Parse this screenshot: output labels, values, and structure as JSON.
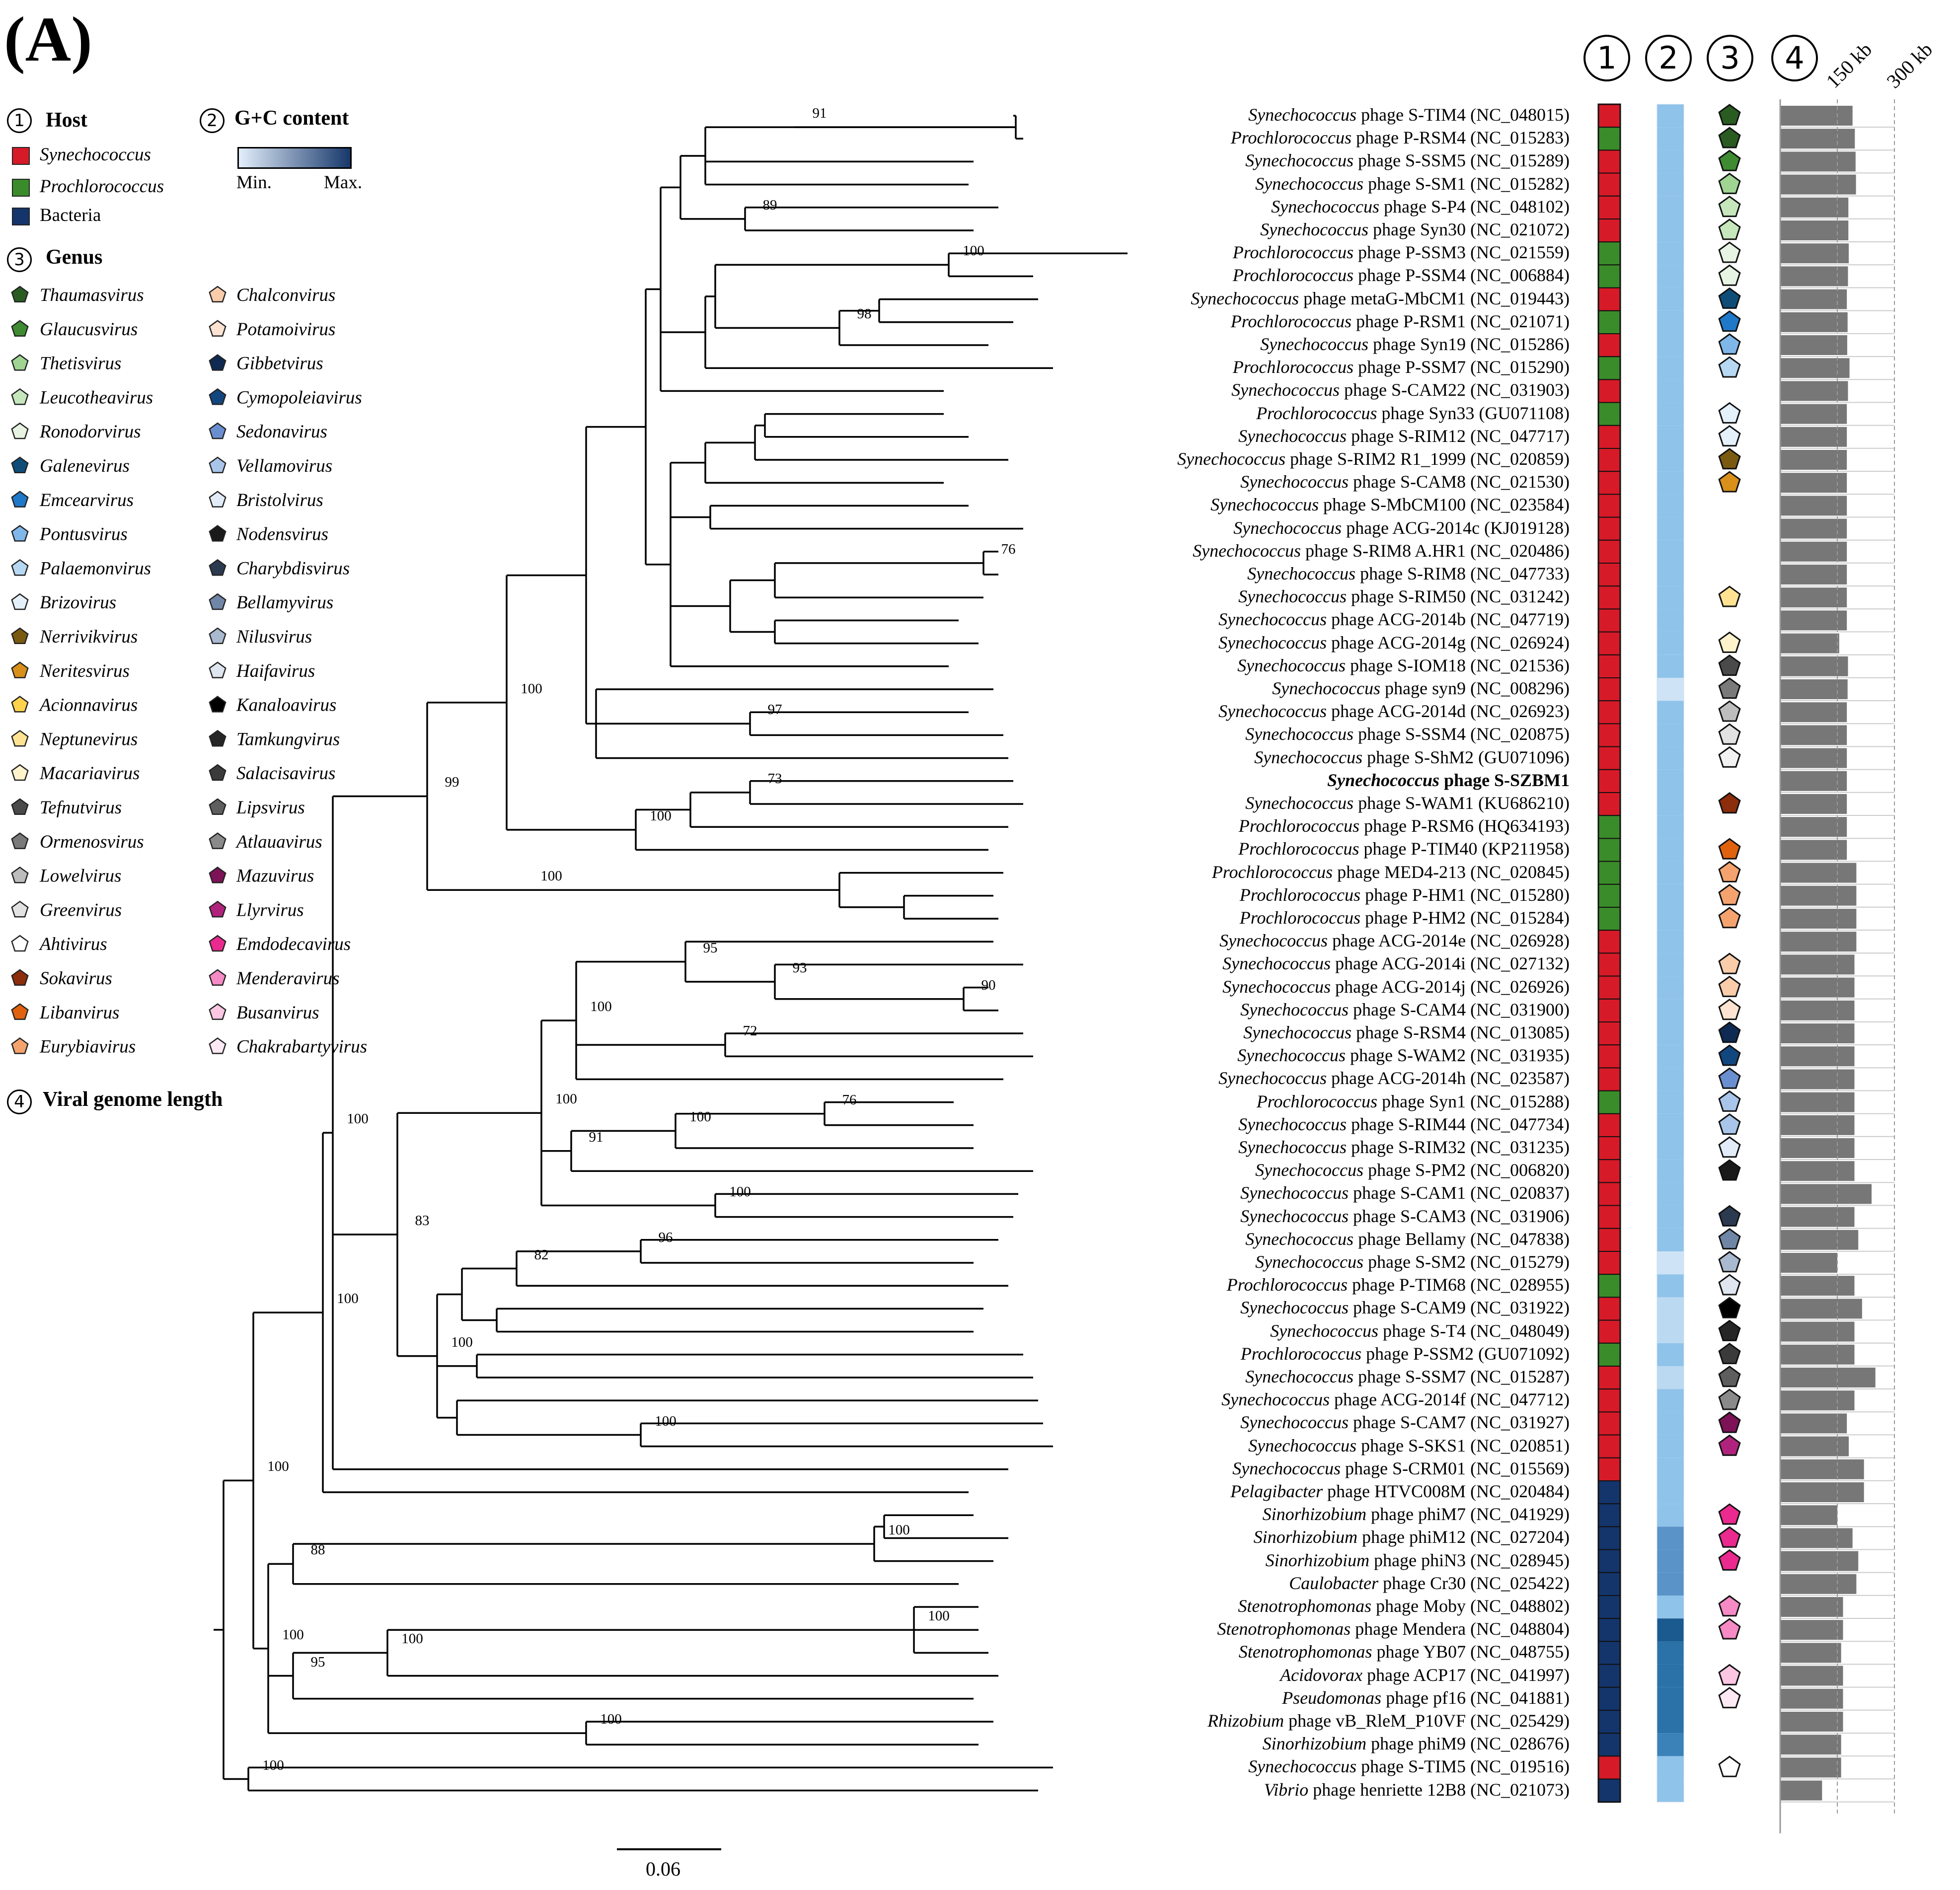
{
  "panel_label": "(A)",
  "legend": {
    "host": {
      "title": "Host",
      "items": [
        {
          "label": "Synechococcus",
          "italic": true,
          "color": "#d71a28"
        },
        {
          "label": "Prochlorococcus",
          "italic": true,
          "color": "#3a8c2a"
        },
        {
          "label": "Bacteria",
          "italic": false,
          "color": "#14356b"
        }
      ]
    },
    "gc": {
      "title": "G+C content",
      "min": "Min.",
      "max": "Max.",
      "color_min": "#e3eefb",
      "color_max": "#17386b"
    },
    "genus": {
      "title": "Genus",
      "col1": [
        {
          "label": "Thaumasvirus",
          "color": "#2a5c22"
        },
        {
          "label": "Glaucusvirus",
          "color": "#3f8b32"
        },
        {
          "label": "Thetisvirus",
          "color": "#9fd493"
        },
        {
          "label": "Leucotheavirus",
          "color": "#c6e6bc"
        },
        {
          "label": "Ronodorvirus",
          "color": "#e8f4e3"
        },
        {
          "label": "Galenevirus",
          "color": "#0f4d78"
        },
        {
          "label": "Emcearvirus",
          "color": "#1f78c8"
        },
        {
          "label": "Pontusvirus",
          "color": "#7fb7e8"
        },
        {
          "label": "Palaemonvirus",
          "color": "#b6d8f3"
        },
        {
          "label": "Brizovirus",
          "color": "#e4f0fa"
        },
        {
          "label": "Nerrivikvirus",
          "color": "#7a5a10"
        },
        {
          "label": "Neritesvirus",
          "color": "#d8901a"
        },
        {
          "label": "Acionnavirus",
          "color": "#ffd24d"
        },
        {
          "label": "Neptunevirus",
          "color": "#ffe392"
        },
        {
          "label": "Macariavirus",
          "color": "#fff3cc"
        },
        {
          "label": "Tefnutvirus",
          "color": "#4a4a4a"
        },
        {
          "label": "Ormenosvirus",
          "color": "#7a7a7a"
        },
        {
          "label": "Lowelvirus",
          "color": "#bdbdbd"
        },
        {
          "label": "Greenvirus",
          "color": "#e2e2e2"
        },
        {
          "label": "Ahtivirus",
          "color": "#ffffff"
        },
        {
          "label": "Sokavirus",
          "color": "#8c2d0c"
        },
        {
          "label": "Libanvirus",
          "color": "#e0620e"
        },
        {
          "label": "Eurybiavirus",
          "color": "#f5a36e"
        }
      ],
      "col2": [
        {
          "label": "Chalconvirus",
          "color": "#f9ccaa"
        },
        {
          "label": "Potamoivirus",
          "color": "#fde4d2"
        },
        {
          "label": "Gibbetvirus",
          "color": "#0e2a52"
        },
        {
          "label": "Cymopoleiavirus",
          "color": "#12467e"
        },
        {
          "label": "Sedonavirus",
          "color": "#6a8fd0"
        },
        {
          "label": "Vellamovirus",
          "color": "#a9c5ea"
        },
        {
          "label": "Bristolvirus",
          "color": "#e2ecf8"
        },
        {
          "label": "Nodensvirus",
          "color": "#1a1a1a"
        },
        {
          "label": "Charybdisvirus",
          "color": "#2c3a50"
        },
        {
          "label": "Bellamyvirus",
          "color": "#7086a6"
        },
        {
          "label": "Nilusvirus",
          "color": "#a9b9cf"
        },
        {
          "label": "Haifavirus",
          "color": "#dfe6ef"
        },
        {
          "label": "Kanaloavirus",
          "color": "#000000"
        },
        {
          "label": "Tamkungvirus",
          "color": "#262626"
        },
        {
          "label": "Salacisavirus",
          "color": "#3b3b3b"
        },
        {
          "label": "Lipsvirus",
          "color": "#5e5e5e"
        },
        {
          "label": "Atlauavirus",
          "color": "#8a8a8a"
        },
        {
          "label": "Mazuvirus",
          "color": "#7d1257"
        },
        {
          "label": "Llyrvirus",
          "color": "#b0237c"
        },
        {
          "label": "Emdodecavirus",
          "color": "#ea2a8e"
        },
        {
          "label": "Menderavirus",
          "color": "#f58ac5"
        },
        {
          "label": "Busanvirus",
          "color": "#fbc6e2"
        },
        {
          "label": "Chakrabartyvirus",
          "color": "#fde9f3"
        }
      ]
    },
    "length": {
      "title": "Viral genome length"
    }
  },
  "column_headers": [
    "1",
    "2",
    "3",
    "4"
  ],
  "length_axis": {
    "ticks": [
      "150 kb",
      "300 kb"
    ],
    "tick_values": [
      150,
      300
    ]
  },
  "scale_bar": {
    "label": "0.06"
  },
  "leaves": [
    {
      "genus": "Synechococcus",
      "rest": "phage S-TIM4 (NC_048015)",
      "host": "#d71a28",
      "gc": "#8fc3ea",
      "pent": "#2a5c22",
      "len": 190
    },
    {
      "genus": "Prochlorococcus",
      "rest": "phage P-RSM4 (NC_015283)",
      "host": "#3a8c2a",
      "gc": "#8fc3ea",
      "pent": "#2a5c22",
      "len": 196
    },
    {
      "genus": "Synechococcus",
      "rest": "phage S-SSM5 (NC_015289)",
      "host": "#d71a28",
      "gc": "#8fc3ea",
      "pent": "#3f8b32",
      "len": 198
    },
    {
      "genus": "Synechococcus",
      "rest": "phage S-SM1 (NC_015282)",
      "host": "#d71a28",
      "gc": "#8fc3ea",
      "pent": "#9fd493",
      "len": 199
    },
    {
      "genus": "Synechococcus",
      "rest": "phage S-P4 (NC_048102)",
      "host": "#d71a28",
      "gc": "#8fc3ea",
      "pent": "#c6e6bc",
      "len": 179
    },
    {
      "genus": "Synechococcus",
      "rest": "phage Syn30 (NC_021072)",
      "host": "#d71a28",
      "gc": "#8fc3ea",
      "pent": "#c6e6bc",
      "len": 179
    },
    {
      "genus": "Prochlorococcus",
      "rest": "phage P-SSM3 (NC_021559)",
      "host": "#3a8c2a",
      "gc": "#8fc3ea",
      "pent": "#e8f4e3",
      "len": 180
    },
    {
      "genus": "Prochlorococcus",
      "rest": "phage P-SSM4 (NC_006884)",
      "host": "#3a8c2a",
      "gc": "#8fc3ea",
      "pent": "#e8f4e3",
      "len": 178
    },
    {
      "genus": "Synechococcus",
      "rest": "phage metaG-MbCM1 (NC_019443)",
      "host": "#d71a28",
      "gc": "#8fc3ea",
      "pent": "#0f4d78",
      "len": 175
    },
    {
      "genus": "Prochlorococcus",
      "rest": "phage P-RSM1 (NC_021071)",
      "host": "#3a8c2a",
      "gc": "#8fc3ea",
      "pent": "#1f78c8",
      "len": 177
    },
    {
      "genus": "Synechococcus",
      "rest": "phage Syn19 (NC_015286)",
      "host": "#d71a28",
      "gc": "#8fc3ea",
      "pent": "#7fb7e8",
      "len": 176
    },
    {
      "genus": "Prochlorococcus",
      "rest": "phage P-SSM7 (NC_015290)",
      "host": "#3a8c2a",
      "gc": "#8fc3ea",
      "pent": "#b6d8f3",
      "len": 182
    },
    {
      "genus": "Synechococcus",
      "rest": "phage S-CAM22 (NC_031903)",
      "host": "#d71a28",
      "gc": "#8fc3ea",
      "pent": "",
      "len": 178
    },
    {
      "genus": "Prochlorococcus",
      "rest": "phage Syn33 (GU071108)",
      "host": "#3a8c2a",
      "gc": "#8fc3ea",
      "pent": "#e4f0fa",
      "len": 175
    },
    {
      "genus": "Synechococcus",
      "rest": "phage S-RIM12 (NC_047717)",
      "host": "#d71a28",
      "gc": "#8fc3ea",
      "pent": "#e4f0fa",
      "len": 175
    },
    {
      "genus": "Synechococcus",
      "rest": "phage S-RIM2 R1_1999 (NC_020859)",
      "host": "#d71a28",
      "gc": "#8fc3ea",
      "pent": "#7a5a10",
      "len": 175
    },
    {
      "genus": "Synechococcus",
      "rest": "phage S-CAM8 (NC_021530)",
      "host": "#d71a28",
      "gc": "#8fc3ea",
      "pent": "#d8901a",
      "len": 175
    },
    {
      "genus": "Synechococcus",
      "rest": "phage S-MbCM100 (NC_023584)",
      "host": "#d71a28",
      "gc": "#8fc3ea",
      "pent": "",
      "len": 175
    },
    {
      "genus": "Synechococcus",
      "rest": "phage ACG-2014c (KJ019128)",
      "host": "#d71a28",
      "gc": "#8fc3ea",
      "pent": "",
      "len": 175
    },
    {
      "genus": "Synechococcus",
      "rest": "phage S-RIM8 A.HR1 (NC_020486)",
      "host": "#d71a28",
      "gc": "#8fc3ea",
      "pent": "",
      "len": 175
    },
    {
      "genus": "Synechococcus",
      "rest": "phage S-RIM8 (NC_047733)",
      "host": "#d71a28",
      "gc": "#8fc3ea",
      "pent": "",
      "len": 175
    },
    {
      "genus": "Synechococcus",
      "rest": "phage S-RIM50 (NC_031242)",
      "host": "#d71a28",
      "gc": "#8fc3ea",
      "pent": "#ffe392",
      "len": 175
    },
    {
      "genus": "Synechococcus",
      "rest": "phage ACG-2014b (NC_047719)",
      "host": "#d71a28",
      "gc": "#8fc3ea",
      "pent": "",
      "len": 175
    },
    {
      "genus": "Synechococcus",
      "rest": "phage ACG-2014g (NC_026924)",
      "host": "#d71a28",
      "gc": "#8fc3ea",
      "pent": "#fff3cc",
      "len": 155
    },
    {
      "genus": "Synechococcus",
      "rest": "phage S-IOM18 (NC_021536)",
      "host": "#d71a28",
      "gc": "#8fc3ea",
      "pent": "#4a4a4a",
      "len": 178
    },
    {
      "genus": "Synechococcus",
      "rest": "phage syn9 (NC_008296)",
      "host": "#d71a28",
      "gc": "#cfe3f6",
      "pent": "#7a7a7a",
      "len": 177
    },
    {
      "genus": "Synechococcus",
      "rest": "phage ACG-2014d (NC_026923)",
      "host": "#d71a28",
      "gc": "#8fc3ea",
      "pent": "#bdbdbd",
      "len": 175
    },
    {
      "genus": "Synechococcus",
      "rest": "phage S-SSM4 (NC_020875)",
      "host": "#d71a28",
      "gc": "#8fc3ea",
      "pent": "#e2e2e2",
      "len": 175
    },
    {
      "genus": "Synechococcus",
      "rest": "phage S-ShM2 (GU071096)",
      "host": "#d71a28",
      "gc": "#8fc3ea",
      "pent": "#f2f2f2",
      "len": 175
    },
    {
      "genus": "Synechococcus",
      "rest": "phage S-SZBM1",
      "host": "#d71a28",
      "gc": "#8fc3ea",
      "pent": "",
      "len": 175,
      "bold": true
    },
    {
      "genus": "Synechococcus",
      "rest": "phage S-WAM1 (KU686210)",
      "host": "#d71a28",
      "gc": "#8fc3ea",
      "pent": "#8c2d0c",
      "len": 175
    },
    {
      "genus": "Prochlorococcus",
      "rest": "phage P-RSM6 (HQ634193)",
      "host": "#3a8c2a",
      "gc": "#8fc3ea",
      "pent": "",
      "len": 175
    },
    {
      "genus": "Prochlorococcus",
      "rest": "phage P-TIM40 (KP211958)",
      "host": "#3a8c2a",
      "gc": "#8fc3ea",
      "pent": "#e0620e",
      "len": 175
    },
    {
      "genus": "Prochlorococcus",
      "rest": "phage MED4-213 (NC_020845)",
      "host": "#3a8c2a",
      "gc": "#8fc3ea",
      "pent": "#f5a36e",
      "len": 200
    },
    {
      "genus": "Prochlorococcus",
      "rest": "phage P-HM1 (NC_015280)",
      "host": "#3a8c2a",
      "gc": "#8fc3ea",
      "pent": "#f5a36e",
      "len": 200
    },
    {
      "genus": "Prochlorococcus",
      "rest": "phage P-HM2 (NC_015284)",
      "host": "#3a8c2a",
      "gc": "#8fc3ea",
      "pent": "#f5a36e",
      "len": 200
    },
    {
      "genus": "Synechococcus",
      "rest": "phage ACG-2014e (NC_026928)",
      "host": "#d71a28",
      "gc": "#8fc3ea",
      "pent": "",
      "len": 200
    },
    {
      "genus": "Synechococcus",
      "rest": "phage ACG-2014i (NC_027132)",
      "host": "#d71a28",
      "gc": "#8fc3ea",
      "pent": "#f9ccaa",
      "len": 195
    },
    {
      "genus": "Synechococcus",
      "rest": "phage ACG-2014j (NC_026926)",
      "host": "#d71a28",
      "gc": "#8fc3ea",
      "pent": "#f9ccaa",
      "len": 195
    },
    {
      "genus": "Synechococcus",
      "rest": "phage S-CAM4 (NC_031900)",
      "host": "#d71a28",
      "gc": "#8fc3ea",
      "pent": "#fde4d2",
      "len": 195
    },
    {
      "genus": "Synechococcus",
      "rest": "phage S-RSM4 (NC_013085)",
      "host": "#d71a28",
      "gc": "#8fc3ea",
      "pent": "#0e2a52",
      "len": 195
    },
    {
      "genus": "Synechococcus",
      "rest": "phage S-WAM2 (NC_031935)",
      "host": "#d71a28",
      "gc": "#8fc3ea",
      "pent": "#12467e",
      "len": 195
    },
    {
      "genus": "Synechococcus",
      "rest": "phage ACG-2014h (NC_023587)",
      "host": "#d71a28",
      "gc": "#8fc3ea",
      "pent": "#6a8fd0",
      "len": 195
    },
    {
      "genus": "Prochlorococcus",
      "rest": "phage Syn1 (NC_015288)",
      "host": "#3a8c2a",
      "gc": "#8fc3ea",
      "pent": "#a9c5ea",
      "len": 195
    },
    {
      "genus": "Synechococcus",
      "rest": "phage S-RIM44 (NC_047734)",
      "host": "#d71a28",
      "gc": "#8fc3ea",
      "pent": "#a9c5ea",
      "len": 195
    },
    {
      "genus": "Synechococcus",
      "rest": "phage S-RIM32 (NC_031235)",
      "host": "#d71a28",
      "gc": "#8fc3ea",
      "pent": "#e2ecf8",
      "len": 195
    },
    {
      "genus": "Synechococcus",
      "rest": "phage S-PM2 (NC_006820)",
      "host": "#d71a28",
      "gc": "#8fc3ea",
      "pent": "#1a1a1a",
      "len": 195
    },
    {
      "genus": "Synechococcus",
      "rest": "phage S-CAM1 (NC_020837)",
      "host": "#d71a28",
      "gc": "#8fc3ea",
      "pent": "",
      "len": 240
    },
    {
      "genus": "Synechococcus",
      "rest": "phage S-CAM3 (NC_031906)",
      "host": "#d71a28",
      "gc": "#8fc3ea",
      "pent": "#2c3a50",
      "len": 195
    },
    {
      "genus": "Synechococcus",
      "rest": "phage Bellamy (NC_047838)",
      "host": "#d71a28",
      "gc": "#8fc3ea",
      "pent": "#7086a6",
      "len": 205
    },
    {
      "genus": "Synechococcus",
      "rest": "phage S-SM2 (NC_015279)",
      "host": "#d71a28",
      "gc": "#cfe3f6",
      "pent": "#a9b9cf",
      "len": 150
    },
    {
      "genus": "Prochlorococcus",
      "rest": "phage P-TIM68 (NC_028955)",
      "host": "#3a8c2a",
      "gc": "#8fc3ea",
      "pent": "#dfe6ef",
      "len": 195
    },
    {
      "genus": "Synechococcus",
      "rest": "phage S-CAM9 (NC_031922)",
      "host": "#d71a28",
      "gc": "#bcd9f2",
      "pent": "#000000",
      "len": 215
    },
    {
      "genus": "Synechococcus",
      "rest": "phage S-T4 (NC_048049)",
      "host": "#d71a28",
      "gc": "#bcd9f2",
      "pent": "#262626",
      "len": 195
    },
    {
      "genus": "Prochlorococcus",
      "rest": "phage P-SSM2 (GU071092)",
      "host": "#3a8c2a",
      "gc": "#8fc3ea",
      "pent": "#3b3b3b",
      "len": 195
    },
    {
      "genus": "Synechococcus",
      "rest": "phage S-SSM7 (NC_015287)",
      "host": "#d71a28",
      "gc": "#bcd9f2",
      "pent": "#5e5e5e",
      "len": 250
    },
    {
      "genus": "Synechococcus",
      "rest": "phage ACG-2014f (NC_047712)",
      "host": "#d71a28",
      "gc": "#8fc3ea",
      "pent": "#8a8a8a",
      "len": 195
    },
    {
      "genus": "Synechococcus",
      "rest": "phage S-CAM7 (NC_031927)",
      "host": "#d71a28",
      "gc": "#8fc3ea",
      "pent": "#7d1257",
      "len": 175
    },
    {
      "genus": "Synechococcus",
      "rest": "phage S-SKS1 (NC_020851)",
      "host": "#d71a28",
      "gc": "#8fc3ea",
      "pent": "#b0237c",
      "len": 180
    },
    {
      "genus": "Synechococcus",
      "rest": "phage S-CRM01 (NC_015569)",
      "host": "#d71a28",
      "gc": "#8fc3ea",
      "pent": "",
      "len": 220
    },
    {
      "genus": "Pelagibacter",
      "rest": "phage HTVC008M (NC_020484)",
      "host": "#14356b",
      "gc": "#8fc3ea",
      "pent": "",
      "len": 220
    },
    {
      "genus": "Sinorhizobium",
      "rest": "phage phiM7 (NC_041929)",
      "host": "#14356b",
      "gc": "#8fc3ea",
      "pent": "#ea2a8e",
      "len": 150
    },
    {
      "genus": "Sinorhizobium",
      "rest": "phage phiM12 (NC_027204)",
      "host": "#14356b",
      "gc": "#5a93c8",
      "pent": "#ea2a8e",
      "len": 190
    },
    {
      "genus": "Sinorhizobium",
      "rest": "phage phiN3 (NC_028945)",
      "host": "#14356b",
      "gc": "#5a93c8",
      "pent": "#ea2a8e",
      "len": 205
    },
    {
      "genus": "Caulobacter",
      "rest": "phage Cr30 (NC_025422)",
      "host": "#14356b",
      "gc": "#5a93c8",
      "pent": "",
      "len": 200
    },
    {
      "genus": "Stenotrophomonas",
      "rest": "phage Moby (NC_048802)",
      "host": "#14356b",
      "gc": "#8fc3ea",
      "pent": "#f58ac5",
      "len": 165
    },
    {
      "genus": "Stenotrophomonas",
      "rest": "phage Mendera (NC_048804)",
      "host": "#14356b",
      "gc": "#1a5a8e",
      "pent": "#f58ac5",
      "len": 165
    },
    {
      "genus": "Stenotrophomonas",
      "rest": "phage YB07 (NC_048755)",
      "host": "#14356b",
      "gc": "#2a72a8",
      "pent": "",
      "len": 160
    },
    {
      "genus": "Acidovorax",
      "rest": "phage ACP17 (NC_041997)",
      "host": "#14356b",
      "gc": "#2a72a8",
      "pent": "#fbc6e2",
      "len": 165
    },
    {
      "genus": "Pseudomonas",
      "rest": "phage pf16 (NC_041881)",
      "host": "#14356b",
      "gc": "#2a72a8",
      "pent": "#fde9f3",
      "len": 165
    },
    {
      "genus": "Rhizobium",
      "rest": "phage vB_RleM_P10VF (NC_025429)",
      "host": "#14356b",
      "gc": "#2a72a8",
      "pent": "",
      "len": 165
    },
    {
      "genus": "Sinorhizobium",
      "rest": "phage phiM9 (NC_028676)",
      "host": "#14356b",
      "gc": "#3a82b8",
      "pent": "",
      "len": 160
    },
    {
      "genus": "Synechococcus",
      "rest": "phage S-TIM5 (NC_019516)",
      "host": "#d71a28",
      "gc": "#8fc3ea",
      "pent": "#ffffff",
      "len": 160
    },
    {
      "genus": "Vibrio",
      "rest": "phage henriette 12B8 (NC_021073)",
      "host": "#14356b",
      "gc": "#8fc3ea",
      "pent": "",
      "len": 110
    }
  ],
  "bootstrap_labels": [
    "91",
    "89",
    "100",
    "98",
    "100",
    "76",
    "100",
    "97",
    "99",
    "73",
    "100",
    "100",
    "83",
    "93",
    "95",
    "90",
    "100",
    "72",
    "91",
    "76",
    "100",
    "100",
    "100",
    "82",
    "96",
    "100",
    "100",
    "100",
    "88",
    "100",
    "100",
    "100",
    "95",
    "100",
    "100"
  ]
}
